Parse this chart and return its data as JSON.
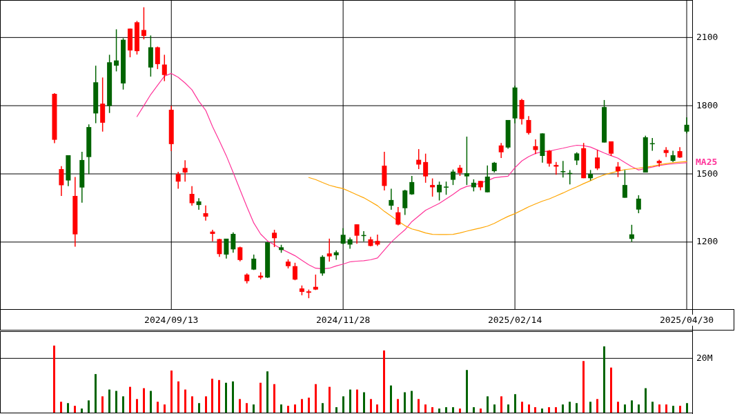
{
  "chart_data": [
    {
      "type": "candlestick",
      "categories": [
        null,
        null,
        null,
        null,
        null,
        null,
        null,
        null,
        null,
        null,
        null,
        null,
        null,
        null,
        null,
        null,
        null,
        "2024/09/13",
        null,
        null,
        null,
        null,
        null,
        null,
        null,
        null,
        null,
        null,
        null,
        null,
        null,
        null,
        null,
        null,
        null,
        null,
        null,
        null,
        null,
        null,
        null,
        null,
        "2024/11/28",
        null,
        null,
        null,
        null,
        null,
        null,
        null,
        null,
        null,
        null,
        null,
        null,
        null,
        null,
        null,
        null,
        null,
        null,
        null,
        null,
        null,
        null,
        null,
        null,
        "2025/02/14",
        null,
        null,
        null,
        null,
        null,
        null,
        null,
        null,
        null,
        null,
        null,
        null,
        null,
        null,
        null,
        null,
        null,
        null,
        null,
        null,
        null,
        null,
        null,
        null,
        "2025/04/30"
      ],
      "ohlc": [
        [
          1852,
          1855,
          1635,
          1650
        ],
        [
          1521,
          1534,
          1403,
          1450
        ],
        [
          1471,
          1582,
          1446,
          1582
        ],
        [
          1403,
          1486,
          1180,
          1234
        ],
        [
          1440,
          1597,
          1373,
          1561
        ],
        [
          1574,
          1718,
          1499,
          1706
        ],
        [
          1766,
          1976,
          1723,
          1903
        ],
        [
          1809,
          1924,
          1686,
          1725
        ],
        [
          1799,
          2024,
          1768,
          1991
        ],
        [
          1976,
          2136,
          1951,
          1999
        ],
        [
          1898,
          2097,
          1871,
          2090
        ],
        [
          2139,
          2139,
          2013,
          2043
        ],
        [
          2167,
          2173,
          2025,
          2040
        ],
        [
          2133,
          2233,
          2092,
          2107
        ],
        [
          1968,
          2109,
          1928,
          2057
        ],
        [
          2057,
          2060,
          1961,
          1983
        ],
        [
          1981,
          2024,
          1908,
          1935
        ],
        [
          1782,
          1800,
          1600,
          1631
        ],
        [
          1499,
          1509,
          1435,
          1466
        ],
        [
          1526,
          1560,
          1466,
          1506
        ],
        [
          1412,
          1446,
          1360,
          1371
        ],
        [
          1363,
          1393,
          1342,
          1379
        ],
        [
          1327,
          1361,
          1294,
          1312
        ],
        [
          1246,
          1254,
          1203,
          1236
        ],
        [
          1213,
          1215,
          1135,
          1147
        ],
        [
          1145,
          1215,
          1127,
          1215
        ],
        [
          1168,
          1243,
          1153,
          1236
        ],
        [
          1177,
          1180,
          1115,
          1121
        ],
        [
          1057,
          1062,
          1018,
          1028
        ],
        [
          1079,
          1145,
          1077,
          1127
        ],
        [
          1052,
          1067,
          1036,
          1044
        ],
        [
          1044,
          1199,
          1042,
          1199
        ],
        [
          1241,
          1254,
          1178,
          1217
        ],
        [
          1165,
          1188,
          1153,
          1177
        ],
        [
          1114,
          1124,
          1084,
          1094
        ],
        [
          1094,
          1109,
          1032,
          1035
        ],
        [
          996,
          1009,
          966,
          981
        ],
        [
          983,
          991,
          953,
          977
        ],
        [
          1003,
          1057,
          989,
          991
        ],
        [
          1062,
          1142,
          1052,
          1135
        ],
        [
          1150,
          1215,
          1114,
          1137
        ],
        [
          1142,
          1163,
          1122,
          1155
        ],
        [
          1193,
          1261,
          1191,
          1232
        ],
        [
          1189,
          1220,
          1171,
          1212
        ],
        [
          1278,
          1278,
          1193,
          1228
        ],
        [
          1228,
          1248,
          1203,
          1231
        ],
        [
          1212,
          1223,
          1181,
          1183
        ],
        [
          1205,
          1233,
          1183,
          1189
        ],
        [
          1536,
          1597,
          1427,
          1447
        ],
        [
          1360,
          1435,
          1342,
          1385
        ],
        [
          1331,
          1354,
          1274,
          1277
        ],
        [
          1349,
          1430,
          1319,
          1427
        ],
        [
          1410,
          1491,
          1408,
          1464
        ],
        [
          1562,
          1609,
          1521,
          1541
        ],
        [
          1552,
          1589,
          1461,
          1489
        ],
        [
          1451,
          1480,
          1400,
          1441
        ],
        [
          1419,
          1466,
          1383,
          1452
        ],
        [
          1441,
          1466,
          1408,
          1444
        ],
        [
          1474,
          1519,
          1451,
          1510
        ],
        [
          1527,
          1539,
          1491,
          1504
        ],
        [
          1489,
          1664,
          1451,
          1503
        ],
        [
          1441,
          1476,
          1423,
          1461
        ],
        [
          1469,
          1469,
          1428,
          1441
        ],
        [
          1419,
          1537,
          1419,
          1488
        ],
        [
          1512,
          1552,
          1506,
          1549
        ],
        [
          1625,
          1636,
          1570,
          1595
        ],
        [
          1616,
          1737,
          1611,
          1737
        ],
        [
          1744,
          1888,
          1722,
          1880
        ],
        [
          1825,
          1830,
          1717,
          1741
        ],
        [
          1737,
          1754,
          1673,
          1680
        ],
        [
          1622,
          1652,
          1587,
          1605
        ],
        [
          1579,
          1678,
          1549,
          1678
        ],
        [
          1602,
          1605,
          1532,
          1545
        ],
        [
          1539,
          1552,
          1496,
          1532
        ],
        [
          1510,
          1557,
          1484,
          1512
        ],
        [
          1501,
          1517,
          1454,
          1504
        ],
        [
          1559,
          1595,
          1539,
          1590
        ],
        [
          1613,
          1636,
          1481,
          1481
        ],
        [
          1481,
          1517,
          1471,
          1500
        ],
        [
          1572,
          1605,
          1517,
          1524
        ],
        [
          1638,
          1825,
          1638,
          1794
        ],
        [
          1643,
          1643,
          1579,
          1589
        ],
        [
          1532,
          1552,
          1486,
          1512
        ],
        [
          1395,
          1517,
          1395,
          1451
        ],
        [
          1214,
          1276,
          1201,
          1234
        ],
        [
          1343,
          1406,
          1327,
          1391
        ],
        [
          1506,
          1668,
          1506,
          1661
        ],
        [
          1631,
          1658,
          1602,
          1635
        ],
        [
          1557,
          1562,
          1532,
          1547
        ],
        [
          1605,
          1618,
          1574,
          1592
        ],
        [
          1557,
          1602,
          1552,
          1582
        ],
        [
          1600,
          1618,
          1570,
          1572
        ],
        [
          1686,
          1749,
          1678,
          1716
        ]
      ],
      "series": [
        {
          "type": "line",
          "name": "MA25",
          "color": "#ff3399",
          "values": [
            null,
            null,
            null,
            null,
            null,
            null,
            null,
            null,
            null,
            null,
            null,
            null,
            1752,
            1800,
            1849,
            1890,
            1930,
            1942,
            1925,
            1900,
            1870,
            1820,
            1780,
            1708,
            1645,
            1580,
            1506,
            1430,
            1355,
            1284,
            1235,
            1205,
            1188,
            1170,
            1155,
            1140,
            1120,
            1100,
            1085,
            1082,
            1085,
            1095,
            1103,
            1113,
            1116,
            1118,
            1122,
            1130,
            1165,
            1200,
            1228,
            1254,
            1290,
            1315,
            1340,
            1355,
            1370,
            1390,
            1410,
            1432,
            1445,
            1450,
            1460,
            1470,
            1483,
            1487,
            1490,
            1527,
            1557,
            1576,
            1590,
            1598,
            1600,
            1607,
            1613,
            1620,
            1626,
            1624,
            1618,
            1605,
            1592,
            1580,
            1569,
            1550,
            1532,
            1517,
            1524,
            1530,
            1537,
            1541,
            1544,
            1547,
            1549
          ]
        },
        {
          "type": "line",
          "color": "#ffa500",
          "values": [
            null,
            null,
            null,
            null,
            null,
            null,
            null,
            null,
            null,
            null,
            null,
            null,
            null,
            null,
            null,
            null,
            null,
            null,
            null,
            null,
            null,
            null,
            null,
            null,
            null,
            null,
            null,
            null,
            null,
            null,
            null,
            null,
            null,
            null,
            null,
            null,
            null,
            1484,
            1475,
            1462,
            1450,
            1442,
            1435,
            1422,
            1408,
            1395,
            1378,
            1360,
            1335,
            1314,
            1292,
            1272,
            1258,
            1250,
            1240,
            1234,
            1233,
            1233,
            1234,
            1240,
            1248,
            1255,
            1262,
            1270,
            1282,
            1298,
            1313,
            1325,
            1340,
            1355,
            1368,
            1380,
            1390,
            1403,
            1416,
            1430,
            1443,
            1457,
            1470,
            1484,
            1496,
            1504,
            1512,
            1519,
            1522,
            1525,
            1529,
            1534,
            1540,
            1545,
            1549,
            1552,
            1554
          ]
        }
      ],
      "ylim": [
        905,
        2265
      ],
      "yticks": [
        1200,
        1500,
        1800,
        2100
      ],
      "grid": true
    },
    {
      "type": "bar",
      "categories": [
        null,
        null,
        null,
        null,
        null,
        null,
        null,
        null,
        null,
        null,
        null,
        null,
        null,
        null,
        null,
        null,
        null,
        null,
        null,
        null,
        null,
        null,
        null,
        null,
        null,
        null,
        null,
        null,
        null,
        null,
        null,
        null,
        null,
        null,
        null,
        null,
        null,
        null,
        null,
        null,
        null,
        null,
        null,
        null,
        null,
        null,
        null,
        null,
        null,
        null,
        null,
        null,
        null,
        null,
        null,
        null,
        null,
        null,
        null,
        null,
        null,
        null,
        null,
        null,
        null,
        null,
        null,
        null,
        null,
        null,
        null,
        null,
        null,
        null,
        null,
        null,
        null,
        null,
        null,
        null,
        null,
        null,
        null,
        null,
        null,
        null,
        null,
        null,
        null,
        null,
        null,
        null,
        null
      ],
      "values": [
        24.7,
        4,
        3.5,
        2.5,
        1.5,
        4.5,
        14.2,
        6,
        8.5,
        8,
        6,
        9.5,
        5,
        9,
        8,
        4,
        3,
        15.5,
        11.5,
        8.5,
        6,
        3.5,
        6,
        12.5,
        12,
        11,
        11.5,
        5,
        3.5,
        3,
        11,
        15.2,
        10.5,
        3,
        2.5,
        3,
        5,
        5.5,
        10.5,
        3.5,
        9.5,
        2,
        6,
        8.5,
        8.5,
        7.5,
        5,
        3,
        22.9,
        10,
        5,
        7.5,
        8,
        5,
        3,
        2,
        1.5,
        2,
        2,
        1.5,
        15.7,
        2,
        1.5,
        6,
        3,
        6,
        3,
        6.8,
        4,
        3,
        2,
        1.5,
        2,
        2,
        3,
        4,
        3.5,
        19,
        4,
        5,
        24.4,
        16.6,
        4,
        3,
        4.5,
        3,
        9,
        4,
        3,
        3,
        2.5,
        2.5,
        3.5
      ],
      "ylim": [
        0,
        30
      ],
      "yticks": [
        {
          "value": 20,
          "label": "20M"
        }
      ],
      "grid": "y",
      "tick_labels": "y"
    }
  ]
}
